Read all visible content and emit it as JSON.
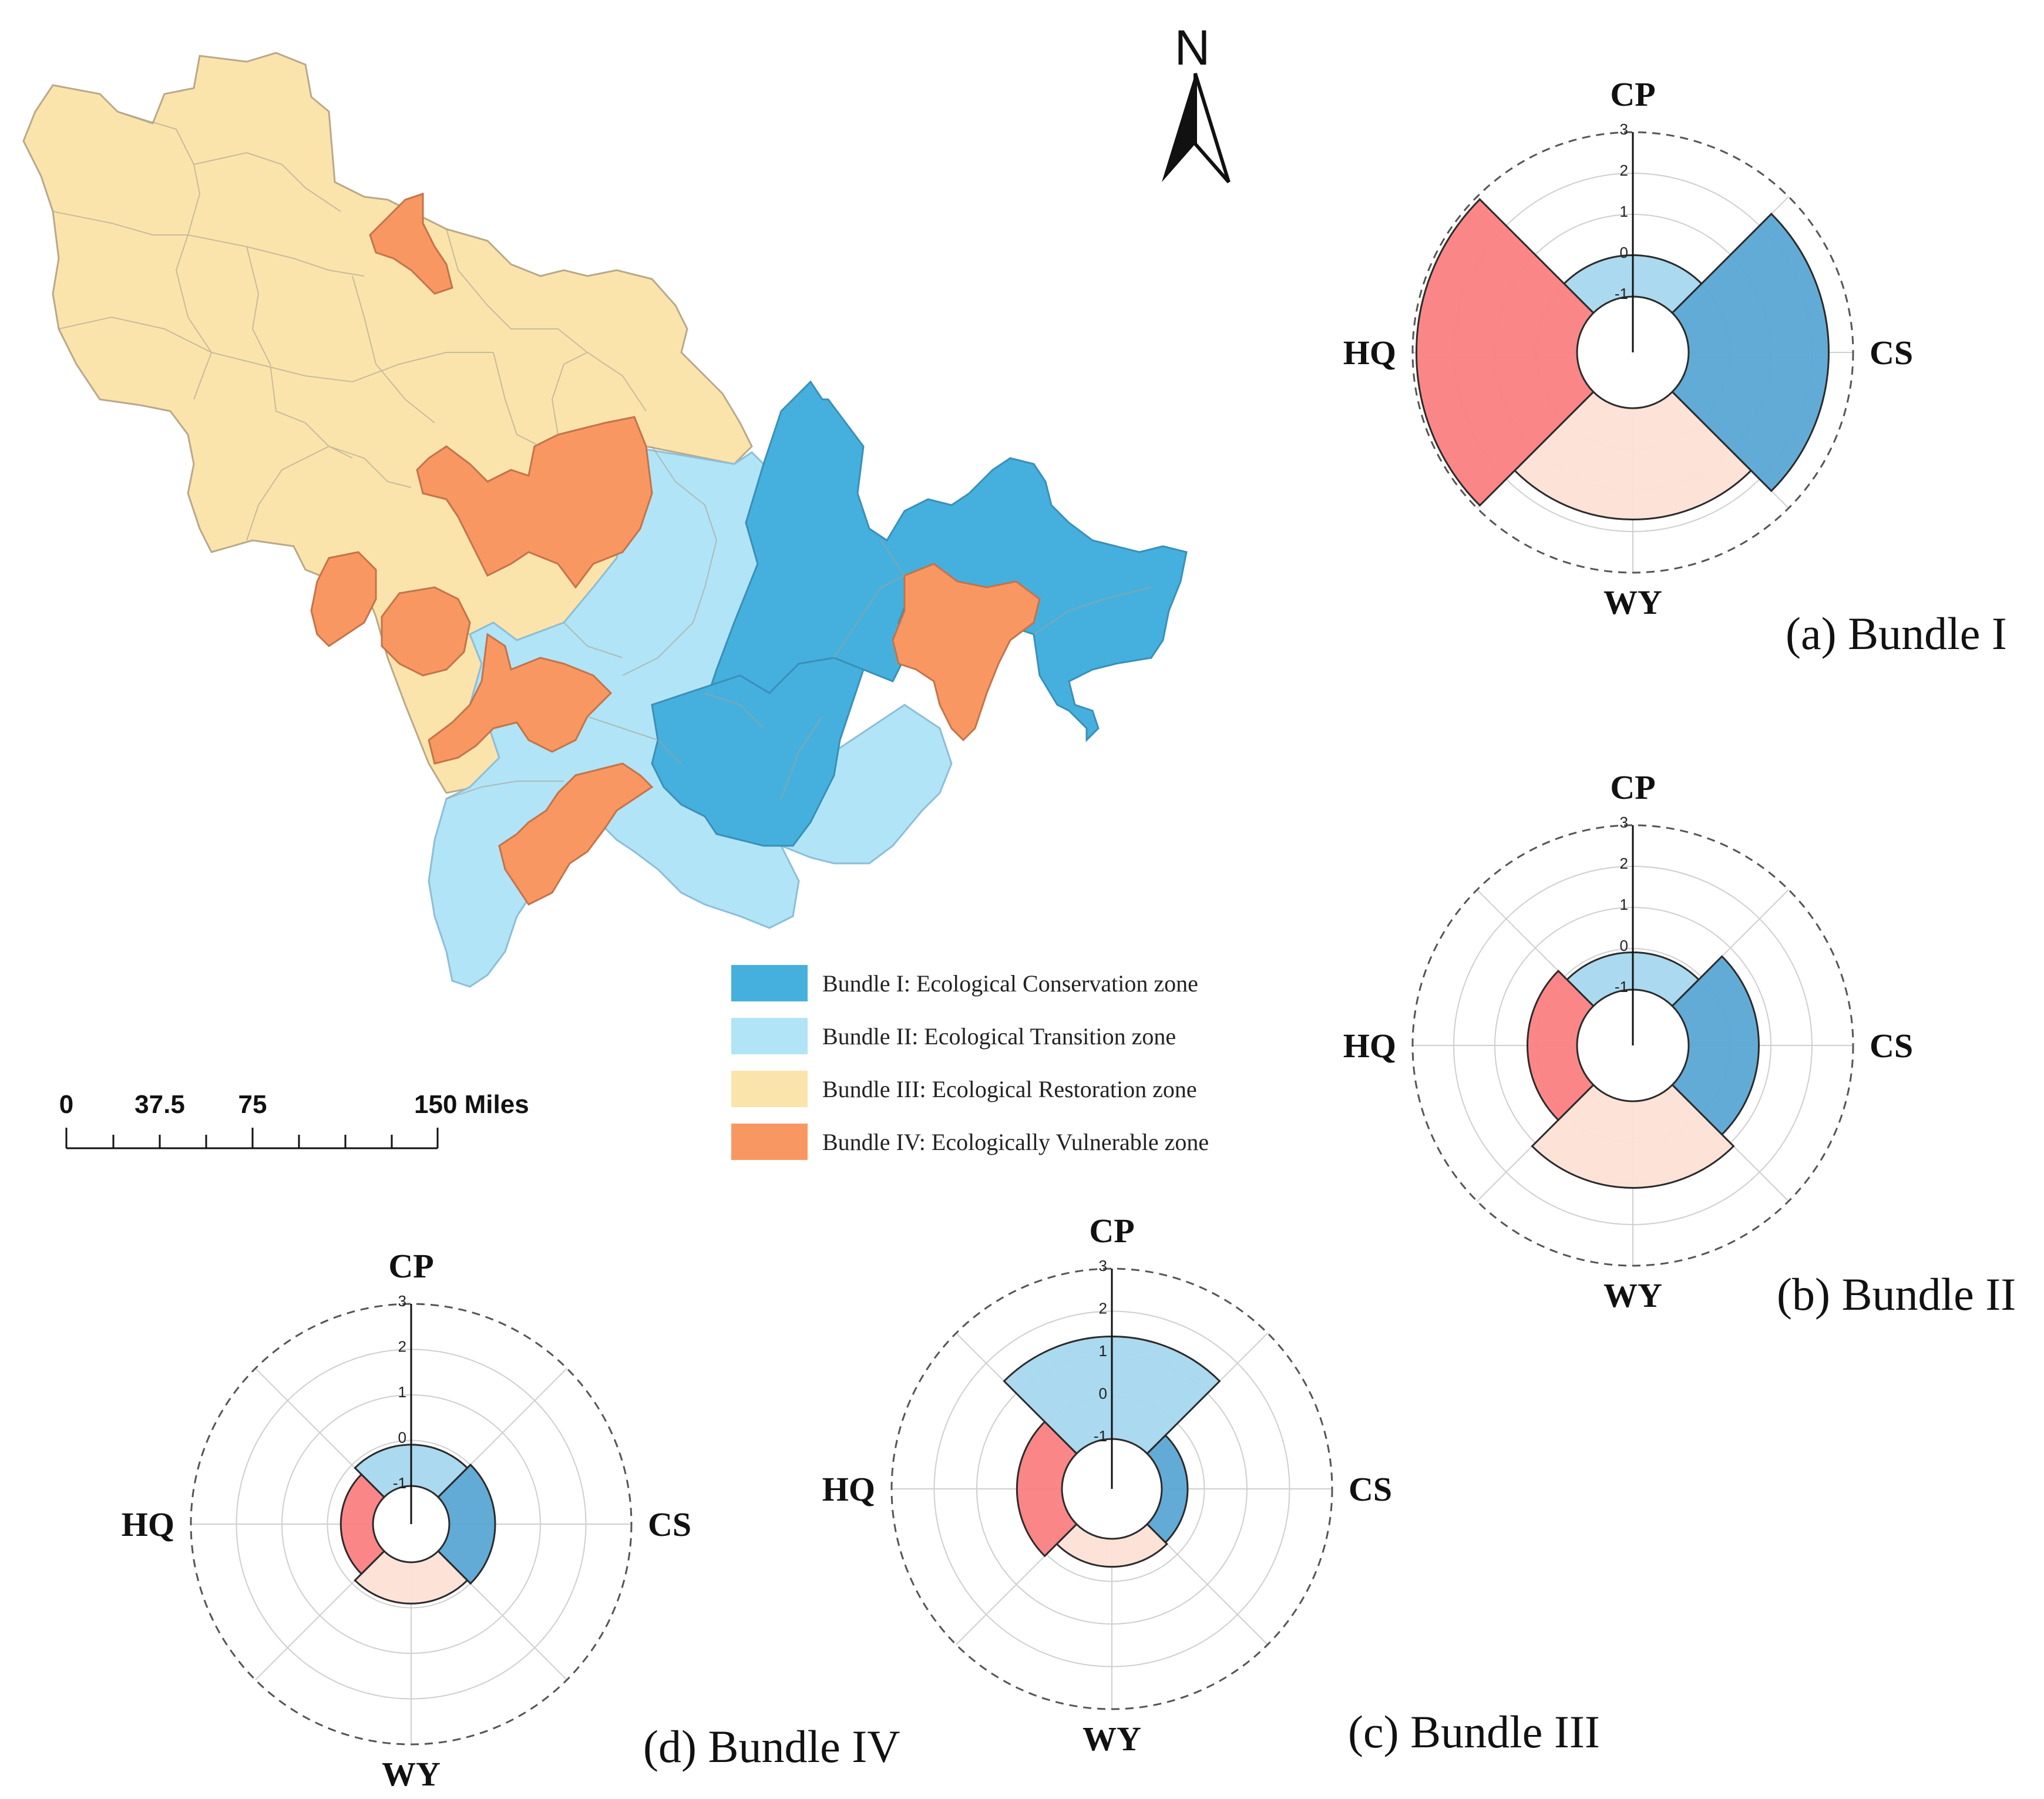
{
  "map": {
    "north_label": "N",
    "scale_bar": {
      "labels": [
        "0",
        "37.5",
        "75",
        "150 Miles"
      ]
    },
    "legend": [
      {
        "key": "I",
        "label": "Bundle I: Ecological Conservation zone",
        "color": "#45b0de"
      },
      {
        "key": "II",
        "label": "Bundle II: Ecological Transition zone",
        "color": "#b1e4f7"
      },
      {
        "key": "III",
        "label": "Bundle III: Ecological Restoration zone",
        "color": "#fbe4ac"
      },
      {
        "key": "IV",
        "label": "Bundle IV: Ecologically Vulnerable zone",
        "color": "#f99762"
      }
    ]
  },
  "chart_data": [
    {
      "type": "polar-bar",
      "caption": "(a) Bundle I",
      "axes": [
        "CP",
        "CS",
        "WY",
        "HQ"
      ],
      "r_ticks": [
        "-1",
        "0",
        "1",
        "2",
        "3"
      ],
      "rlim": [
        -1,
        3
      ],
      "values": {
        "CP": 0.0,
        "CS": 2.4,
        "WY": 1.7,
        "HQ": 2.9
      }
    },
    {
      "type": "polar-bar",
      "caption": "(b) Bundle II",
      "axes": [
        "CP",
        "CS",
        "WY",
        "HQ"
      ],
      "r_ticks": [
        "-1",
        "0",
        "1",
        "2",
        "3"
      ],
      "rlim": [
        -1,
        3
      ],
      "values": {
        "CP": -0.1,
        "CS": 0.7,
        "WY": 1.1,
        "HQ": 0.2
      }
    },
    {
      "type": "polar-bar",
      "caption": "(c) Bundle III",
      "axes": [
        "CP",
        "CS",
        "WY",
        "HQ"
      ],
      "r_ticks": [
        "-1",
        "0",
        "1",
        "2",
        "3"
      ],
      "rlim": [
        -1,
        3
      ],
      "values": {
        "CP": 1.4,
        "CS": -0.4,
        "WY": -0.35,
        "HQ": 0.05
      }
    },
    {
      "type": "polar-bar",
      "caption": "(d) Bundle IV",
      "axes": [
        "CP",
        "CS",
        "WY",
        "HQ"
      ],
      "r_ticks": [
        "-1",
        "0",
        "1",
        "2",
        "3"
      ],
      "rlim": [
        -1,
        3
      ],
      "values": {
        "CP": -0.1,
        "CS": 0.0,
        "WY": -0.1,
        "HQ": -0.3
      }
    }
  ],
  "colors": {
    "CP": "#a6d7ee",
    "CS": "#5ba7d5",
    "WY": "#fde0d6",
    "HQ": "#fb7f82"
  }
}
